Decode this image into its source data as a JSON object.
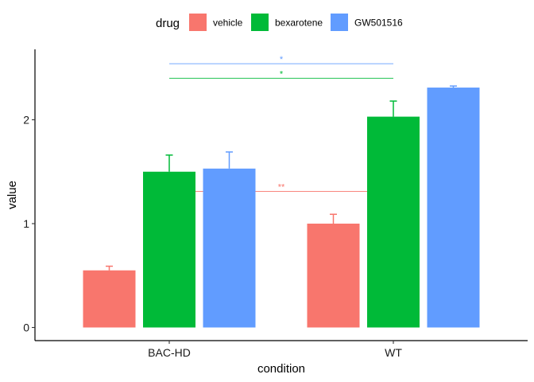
{
  "chart_data": {
    "type": "bar",
    "xlabel": "condition",
    "ylabel": "value",
    "categories": [
      "BAC-HD",
      "WT"
    ],
    "ylim": [
      0,
      2.5
    ],
    "yticks": [
      0,
      1,
      2
    ],
    "grid": false,
    "legend": {
      "title": "drug",
      "position": "top"
    },
    "series": [
      {
        "name": "vehicle",
        "color": "#F8766D",
        "values": [
          0.55,
          1.0
        ],
        "errors": [
          0.04,
          0.09
        ]
      },
      {
        "name": "bexarotene",
        "color": "#00BA38",
        "values": [
          1.5,
          2.03
        ],
        "errors": [
          0.16,
          0.15
        ]
      },
      {
        "name": "GW501516",
        "color": "#619CFF",
        "values": [
          1.53,
          2.31
        ],
        "errors": [
          0.16,
          0.015
        ]
      }
    ],
    "annotations": [
      {
        "label": "*",
        "y": 2.54,
        "from": "BAC-HD",
        "to": "WT",
        "color": "#619CFF"
      },
      {
        "label": "*",
        "y": 2.4,
        "from": "BAC-HD",
        "to": "WT",
        "color": "#00BA38"
      },
      {
        "label": "**",
        "y": 1.31,
        "from": "BAC-HD",
        "to": "WT",
        "color": "#F8766D"
      }
    ]
  }
}
